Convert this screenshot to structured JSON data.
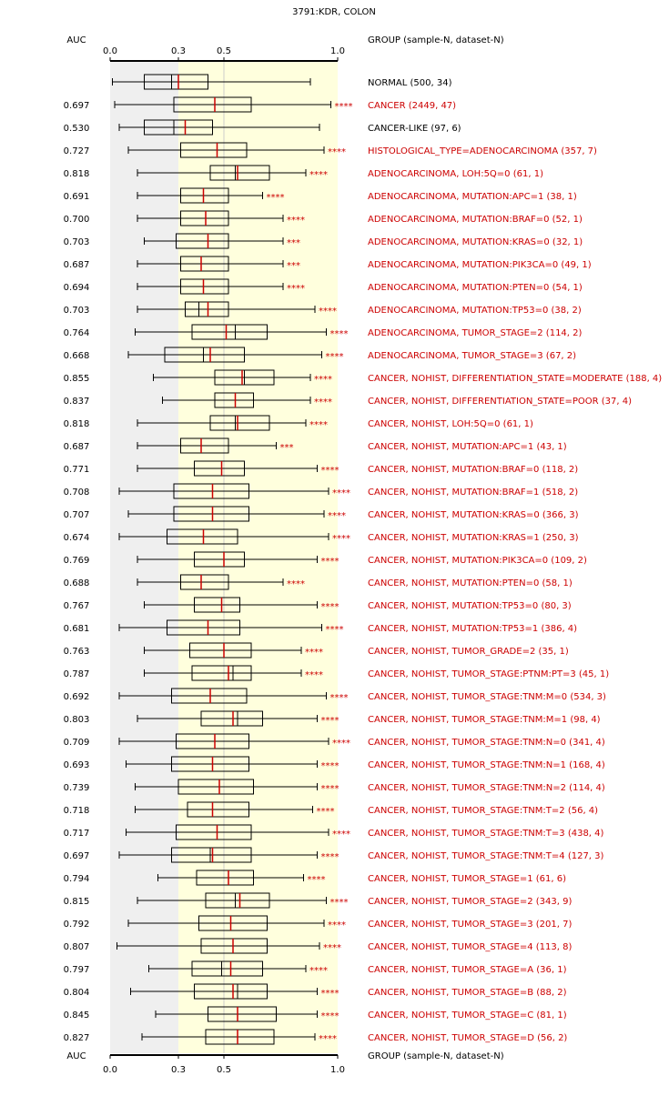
{
  "chart_data": {
    "type": "boxplot",
    "title": "3791:KDR, COLON",
    "auc_header": "AUC",
    "group_header": "GROUP (sample-N, dataset-N)",
    "x_ticks": [
      0.0,
      0.3,
      0.5,
      1.0
    ],
    "x_tick_labels": [
      "0.0",
      "0.3",
      "0.5",
      "1.0"
    ],
    "xlim": [
      0,
      1
    ],
    "colors": {
      "normal": "#000000",
      "significant": "#cc0000",
      "shade_low": "#efefef",
      "shade_high": "#ffffdd",
      "median": "#cc0000",
      "box_stroke": "#000000",
      "mean_line": "#cccccc"
    },
    "rows": [
      {
        "auc": "",
        "label": "NORMAL (500, 34)",
        "color": "black",
        "stars": "",
        "whisker_low": 0.01,
        "q1": 0.15,
        "median": 0.3,
        "q3": 0.43,
        "whisker_high": 0.88,
        "mean": 0.27
      },
      {
        "auc": "0.697",
        "label": "CANCER (2449, 47)",
        "color": "red",
        "stars": "****",
        "whisker_low": 0.02,
        "q1": 0.28,
        "median": 0.46,
        "q3": 0.62,
        "whisker_high": 0.97,
        "mean": 0.46
      },
      {
        "auc": "0.530",
        "label": "CANCER-LIKE (97, 6)",
        "color": "black",
        "stars": "",
        "whisker_low": 0.04,
        "q1": 0.15,
        "median": 0.33,
        "q3": 0.45,
        "whisker_high": 0.92,
        "mean": 0.28
      },
      {
        "auc": "0.727",
        "label": "HISTOLOGICAL_TYPE=ADENOCARCINOMA (357, 7)",
        "color": "red",
        "stars": "****",
        "whisker_low": 0.08,
        "q1": 0.31,
        "median": 0.47,
        "q3": 0.6,
        "whisker_high": 0.94,
        "mean": 0.47
      },
      {
        "auc": "0.818",
        "label": "ADENOCARCINOMA, LOH:5Q=0 (61, 1)",
        "color": "red",
        "stars": "****",
        "whisker_low": 0.12,
        "q1": 0.44,
        "median": 0.56,
        "q3": 0.7,
        "whisker_high": 0.86,
        "mean": 0.55
      },
      {
        "auc": "0.691",
        "label": "ADENOCARCINOMA, MUTATION:APC=1 (38, 1)",
        "color": "red",
        "stars": "****",
        "whisker_low": 0.12,
        "q1": 0.31,
        "median": 0.41,
        "q3": 0.52,
        "whisker_high": 0.67,
        "mean": 0.41
      },
      {
        "auc": "0.700",
        "label": "ADENOCARCINOMA, MUTATION:BRAF=0 (52, 1)",
        "color": "red",
        "stars": "****",
        "whisker_low": 0.12,
        "q1": 0.31,
        "median": 0.42,
        "q3": 0.52,
        "whisker_high": 0.76,
        "mean": 0.42
      },
      {
        "auc": "0.703",
        "label": "ADENOCARCINOMA, MUTATION:KRAS=0 (32, 1)",
        "color": "red",
        "stars": "***",
        "whisker_low": 0.15,
        "q1": 0.29,
        "median": 0.43,
        "q3": 0.52,
        "whisker_high": 0.76,
        "mean": 0.43
      },
      {
        "auc": "0.687",
        "label": "ADENOCARCINOMA, MUTATION:PIK3CA=0 (49, 1)",
        "color": "red",
        "stars": "***",
        "whisker_low": 0.12,
        "q1": 0.31,
        "median": 0.4,
        "q3": 0.52,
        "whisker_high": 0.76,
        "mean": 0.4
      },
      {
        "auc": "0.694",
        "label": "ADENOCARCINOMA, MUTATION:PTEN=0 (54, 1)",
        "color": "red",
        "stars": "****",
        "whisker_low": 0.12,
        "q1": 0.31,
        "median": 0.41,
        "q3": 0.52,
        "whisker_high": 0.76,
        "mean": 0.41
      },
      {
        "auc": "0.703",
        "label": "ADENOCARCINOMA, MUTATION:TP53=0 (38, 2)",
        "color": "red",
        "stars": "****",
        "whisker_low": 0.12,
        "q1": 0.33,
        "median": 0.43,
        "q3": 0.52,
        "whisker_high": 0.9,
        "mean": 0.39
      },
      {
        "auc": "0.764",
        "label": "ADENOCARCINOMA, TUMOR_STAGE=2 (114, 2)",
        "color": "red",
        "stars": "****",
        "whisker_low": 0.11,
        "q1": 0.36,
        "median": 0.51,
        "q3": 0.69,
        "whisker_high": 0.95,
        "mean": 0.55
      },
      {
        "auc": "0.668",
        "label": "ADENOCARCINOMA, TUMOR_STAGE=3 (67, 2)",
        "color": "red",
        "stars": "****",
        "whisker_low": 0.08,
        "q1": 0.24,
        "median": 0.44,
        "q3": 0.59,
        "whisker_high": 0.93,
        "mean": 0.41
      },
      {
        "auc": "0.855",
        "label": "CANCER, NOHIST, DIFFERENTIATION_STATE=MODERATE (188, 4)",
        "color": "red",
        "stars": "****",
        "whisker_low": 0.19,
        "q1": 0.46,
        "median": 0.58,
        "q3": 0.72,
        "whisker_high": 0.88,
        "mean": 0.59
      },
      {
        "auc": "0.837",
        "label": "CANCER, NOHIST, DIFFERENTIATION_STATE=POOR (37, 4)",
        "color": "red",
        "stars": "****",
        "whisker_low": 0.23,
        "q1": 0.46,
        "median": 0.55,
        "q3": 0.63,
        "whisker_high": 0.88,
        "mean": 0.55
      },
      {
        "auc": "0.818",
        "label": "CANCER, NOHIST, LOH:5Q=0 (61, 1)",
        "color": "red",
        "stars": "****",
        "whisker_low": 0.12,
        "q1": 0.44,
        "median": 0.56,
        "q3": 0.7,
        "whisker_high": 0.86,
        "mean": 0.55
      },
      {
        "auc": "0.687",
        "label": "CANCER, NOHIST, MUTATION:APC=1 (43, 1)",
        "color": "red",
        "stars": "***",
        "whisker_low": 0.12,
        "q1": 0.31,
        "median": 0.4,
        "q3": 0.52,
        "whisker_high": 0.73,
        "mean": 0.4
      },
      {
        "auc": "0.771",
        "label": "CANCER, NOHIST, MUTATION:BRAF=0 (118, 2)",
        "color": "red",
        "stars": "****",
        "whisker_low": 0.12,
        "q1": 0.37,
        "median": 0.49,
        "q3": 0.59,
        "whisker_high": 0.91,
        "mean": 0.49
      },
      {
        "auc": "0.708",
        "label": "CANCER, NOHIST, MUTATION:BRAF=1 (518, 2)",
        "color": "red",
        "stars": "****",
        "whisker_low": 0.04,
        "q1": 0.28,
        "median": 0.45,
        "q3": 0.61,
        "whisker_high": 0.96,
        "mean": 0.45
      },
      {
        "auc": "0.707",
        "label": "CANCER, NOHIST, MUTATION:KRAS=0 (366, 3)",
        "color": "red",
        "stars": "****",
        "whisker_low": 0.08,
        "q1": 0.28,
        "median": 0.45,
        "q3": 0.61,
        "whisker_high": 0.94,
        "mean": 0.45
      },
      {
        "auc": "0.674",
        "label": "CANCER, NOHIST, MUTATION:KRAS=1 (250, 3)",
        "color": "red",
        "stars": "****",
        "whisker_low": 0.04,
        "q1": 0.25,
        "median": 0.41,
        "q3": 0.56,
        "whisker_high": 0.96,
        "mean": 0.41
      },
      {
        "auc": "0.769",
        "label": "CANCER, NOHIST, MUTATION:PIK3CA=0 (109, 2)",
        "color": "red",
        "stars": "****",
        "whisker_low": 0.12,
        "q1": 0.37,
        "median": 0.5,
        "q3": 0.59,
        "whisker_high": 0.91,
        "mean": 0.5
      },
      {
        "auc": "0.688",
        "label": "CANCER, NOHIST, MUTATION:PTEN=0 (58, 1)",
        "color": "red",
        "stars": "****",
        "whisker_low": 0.12,
        "q1": 0.31,
        "median": 0.4,
        "q3": 0.52,
        "whisker_high": 0.76,
        "mean": 0.4
      },
      {
        "auc": "0.767",
        "label": "CANCER, NOHIST, MUTATION:TP53=0 (80, 3)",
        "color": "red",
        "stars": "****",
        "whisker_low": 0.15,
        "q1": 0.37,
        "median": 0.49,
        "q3": 0.57,
        "whisker_high": 0.91,
        "mean": 0.49
      },
      {
        "auc": "0.681",
        "label": "CANCER, NOHIST, MUTATION:TP53=1 (386, 4)",
        "color": "red",
        "stars": "****",
        "whisker_low": 0.04,
        "q1": 0.25,
        "median": 0.43,
        "q3": 0.57,
        "whisker_high": 0.93,
        "mean": 0.43
      },
      {
        "auc": "0.763",
        "label": "CANCER, NOHIST, TUMOR_GRADE=2 (35, 1)",
        "color": "red",
        "stars": "****",
        "whisker_low": 0.15,
        "q1": 0.35,
        "median": 0.5,
        "q3": 0.62,
        "whisker_high": 0.84,
        "mean": 0.5
      },
      {
        "auc": "0.787",
        "label": "CANCER, NOHIST, TUMOR_STAGE:PTNM:PT=3 (45, 1)",
        "color": "red",
        "stars": "****",
        "whisker_low": 0.15,
        "q1": 0.36,
        "median": 0.52,
        "q3": 0.62,
        "whisker_high": 0.84,
        "mean": 0.54
      },
      {
        "auc": "0.692",
        "label": "CANCER, NOHIST, TUMOR_STAGE:TNM:M=0 (534, 3)",
        "color": "red",
        "stars": "****",
        "whisker_low": 0.04,
        "q1": 0.27,
        "median": 0.44,
        "q3": 0.6,
        "whisker_high": 0.95,
        "mean": 0.44
      },
      {
        "auc": "0.803",
        "label": "CANCER, NOHIST, TUMOR_STAGE:TNM:M=1 (98, 4)",
        "color": "red",
        "stars": "****",
        "whisker_low": 0.12,
        "q1": 0.4,
        "median": 0.54,
        "q3": 0.67,
        "whisker_high": 0.91,
        "mean": 0.56
      },
      {
        "auc": "0.709",
        "label": "CANCER, NOHIST, TUMOR_STAGE:TNM:N=0 (341, 4)",
        "color": "red",
        "stars": "****",
        "whisker_low": 0.04,
        "q1": 0.29,
        "median": 0.46,
        "q3": 0.61,
        "whisker_high": 0.96,
        "mean": 0.46
      },
      {
        "auc": "0.693",
        "label": "CANCER, NOHIST, TUMOR_STAGE:TNM:N=1 (168, 4)",
        "color": "red",
        "stars": "****",
        "whisker_low": 0.07,
        "q1": 0.27,
        "median": 0.45,
        "q3": 0.61,
        "whisker_high": 0.91,
        "mean": 0.45
      },
      {
        "auc": "0.739",
        "label": "CANCER, NOHIST, TUMOR_STAGE:TNM:N=2 (114, 4)",
        "color": "red",
        "stars": "****",
        "whisker_low": 0.11,
        "q1": 0.3,
        "median": 0.48,
        "q3": 0.63,
        "whisker_high": 0.91,
        "mean": 0.48
      },
      {
        "auc": "0.718",
        "label": "CANCER, NOHIST, TUMOR_STAGE:TNM:T=2 (56, 4)",
        "color": "red",
        "stars": "****",
        "whisker_low": 0.11,
        "q1": 0.34,
        "median": 0.45,
        "q3": 0.61,
        "whisker_high": 0.89,
        "mean": 0.45
      },
      {
        "auc": "0.717",
        "label": "CANCER, NOHIST, TUMOR_STAGE:TNM:T=3 (438, 4)",
        "color": "red",
        "stars": "****",
        "whisker_low": 0.07,
        "q1": 0.29,
        "median": 0.47,
        "q3": 0.62,
        "whisker_high": 0.96,
        "mean": 0.47
      },
      {
        "auc": "0.697",
        "label": "CANCER, NOHIST, TUMOR_STAGE:TNM:T=4 (127, 3)",
        "color": "red",
        "stars": "****",
        "whisker_low": 0.04,
        "q1": 0.27,
        "median": 0.45,
        "q3": 0.62,
        "whisker_high": 0.91,
        "mean": 0.44
      },
      {
        "auc": "0.794",
        "label": "CANCER, NOHIST, TUMOR_STAGE=1 (61, 6)",
        "color": "red",
        "stars": "****",
        "whisker_low": 0.21,
        "q1": 0.38,
        "median": 0.52,
        "q3": 0.63,
        "whisker_high": 0.85,
        "mean": 0.52
      },
      {
        "auc": "0.815",
        "label": "CANCER, NOHIST, TUMOR_STAGE=2 (343, 9)",
        "color": "red",
        "stars": "****",
        "whisker_low": 0.12,
        "q1": 0.42,
        "median": 0.57,
        "q3": 0.7,
        "whisker_high": 0.95,
        "mean": 0.55
      },
      {
        "auc": "0.792",
        "label": "CANCER, NOHIST, TUMOR_STAGE=3 (201, 7)",
        "color": "red",
        "stars": "****",
        "whisker_low": 0.08,
        "q1": 0.39,
        "median": 0.53,
        "q3": 0.69,
        "whisker_high": 0.94,
        "mean": 0.53
      },
      {
        "auc": "0.807",
        "label": "CANCER, NOHIST, TUMOR_STAGE=4 (113, 8)",
        "color": "red",
        "stars": "****",
        "whisker_low": 0.03,
        "q1": 0.4,
        "median": 0.54,
        "q3": 0.69,
        "whisker_high": 0.92,
        "mean": 0.54
      },
      {
        "auc": "0.797",
        "label": "CANCER, NOHIST, TUMOR_STAGE=A (36, 1)",
        "color": "red",
        "stars": "****",
        "whisker_low": 0.17,
        "q1": 0.36,
        "median": 0.53,
        "q3": 0.67,
        "whisker_high": 0.86,
        "mean": 0.49
      },
      {
        "auc": "0.804",
        "label": "CANCER, NOHIST, TUMOR_STAGE=B (88, 2)",
        "color": "red",
        "stars": "****",
        "whisker_low": 0.09,
        "q1": 0.37,
        "median": 0.54,
        "q3": 0.69,
        "whisker_high": 0.91,
        "mean": 0.56
      },
      {
        "auc": "0.845",
        "label": "CANCER, NOHIST, TUMOR_STAGE=C (81, 1)",
        "color": "red",
        "stars": "****",
        "whisker_low": 0.2,
        "q1": 0.43,
        "median": 0.56,
        "q3": 0.73,
        "whisker_high": 0.91,
        "mean": 0.56
      },
      {
        "auc": "0.827",
        "label": "CANCER, NOHIST, TUMOR_STAGE=D (56, 2)",
        "color": "red",
        "stars": "****",
        "whisker_low": 0.14,
        "q1": 0.42,
        "median": 0.56,
        "q3": 0.72,
        "whisker_high": 0.9,
        "mean": 0.56
      }
    ]
  }
}
